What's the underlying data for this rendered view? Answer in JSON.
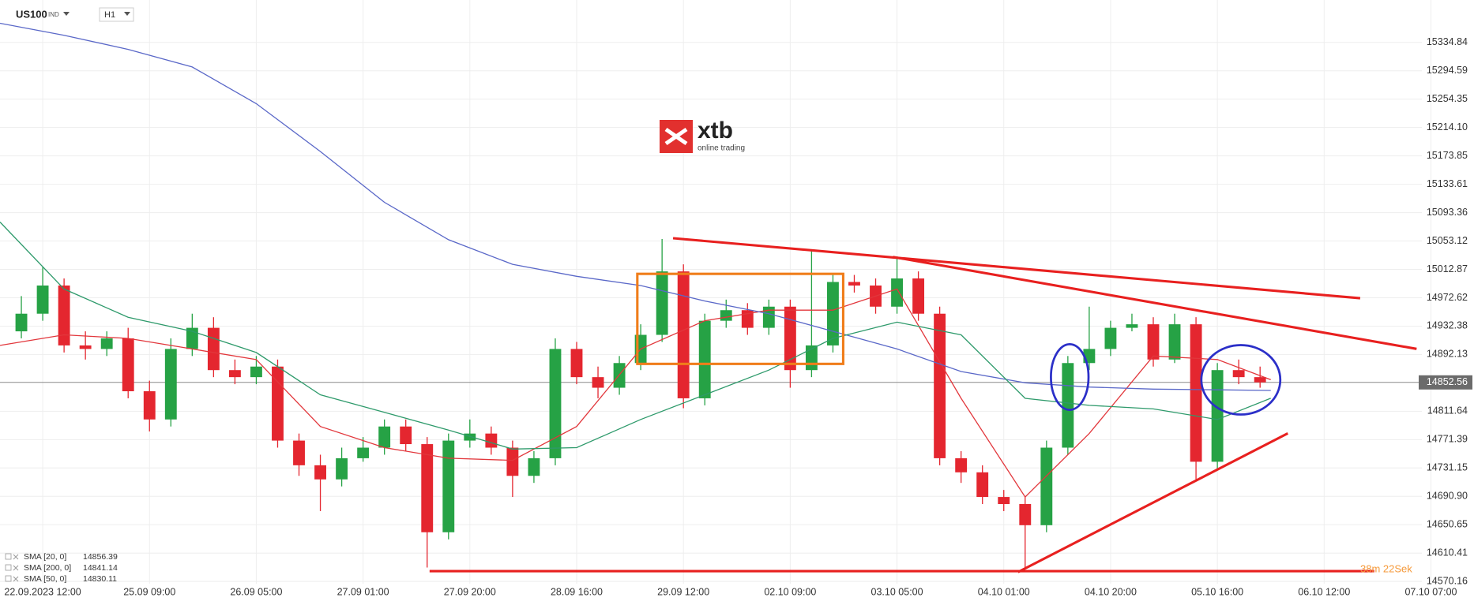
{
  "symbol": "US100",
  "market": "IND",
  "timeframe": "H1",
  "logo": {
    "mark": "xtb",
    "tagline": "online trading"
  },
  "countdown": "38m 22Sek",
  "chart_data": {
    "type": "candlestick",
    "x": [
      -4,
      0,
      4,
      8,
      12,
      16,
      20,
      24,
      28,
      32,
      36,
      40,
      44,
      48,
      52,
      56,
      60,
      64,
      68,
      72,
      76,
      80,
      84,
      88,
      92,
      96,
      100,
      104,
      108,
      112,
      116,
      120,
      124,
      128,
      132,
      136,
      140,
      144,
      148,
      152,
      156,
      160,
      164,
      168,
      172,
      176,
      180,
      184,
      188,
      192,
      196,
      200,
      204,
      208,
      212,
      216,
      220,
      224,
      228
    ],
    "open": [
      14925,
      14950,
      14990,
      14905,
      14900,
      14915,
      14840,
      14800,
      14900,
      14930,
      14870,
      14860,
      14875,
      14770,
      14735,
      14715,
      14745,
      14760,
      14790,
      14765,
      14640,
      14770,
      14780,
      14760,
      14720,
      14745,
      14900,
      14860,
      14845,
      14880,
      14920,
      15010,
      14830,
      14940,
      14955,
      14930,
      14960,
      14870,
      14905,
      14995,
      14990,
      14960,
      15000,
      14950,
      14745,
      14725,
      14690,
      14680,
      14650,
      14760,
      14880,
      14900,
      14930,
      14935,
      14885,
      14935,
      14740,
      14870,
      14860
    ],
    "high": [
      14975,
      15016,
      15000,
      14925,
      14925,
      14930,
      14855,
      14915,
      14950,
      14945,
      14885,
      14890,
      14885,
      14780,
      14750,
      14760,
      14775,
      14800,
      14800,
      14775,
      14780,
      14800,
      14790,
      14770,
      14755,
      14915,
      14910,
      14875,
      14890,
      14935,
      15056,
      15020,
      14950,
      14970,
      14965,
      14970,
      14970,
      15040,
      15005,
      15005,
      15000,
      15028,
      15010,
      14960,
      14755,
      14735,
      14700,
      14690,
      14770,
      14890,
      14960,
      14940,
      14950,
      14945,
      14950,
      14945,
      14880,
      14885,
      14875
    ],
    "low": [
      14915,
      14940,
      14895,
      14885,
      14890,
      14830,
      14783,
      14790,
      14890,
      14860,
      14850,
      14850,
      14760,
      14720,
      14670,
      14705,
      14740,
      14750,
      14755,
      14590,
      14630,
      14760,
      14750,
      14690,
      14710,
      14735,
      14850,
      14830,
      14835,
      14870,
      14910,
      14816,
      14820,
      14930,
      14920,
      14920,
      14845,
      14860,
      14895,
      14980,
      14950,
      14950,
      14940,
      14735,
      14710,
      14680,
      14670,
      14588,
      14640,
      14750,
      14870,
      14890,
      14925,
      14875,
      14880,
      14715,
      14730,
      14850,
      14845
    ],
    "close": [
      14950,
      14990,
      14905,
      14900,
      14915,
      14840,
      14800,
      14900,
      14930,
      14870,
      14860,
      14875,
      14770,
      14735,
      14715,
      14745,
      14760,
      14790,
      14765,
      14640,
      14770,
      14780,
      14760,
      14720,
      14745,
      14900,
      14860,
      14845,
      14880,
      14920,
      15010,
      14830,
      14940,
      14955,
      14930,
      14960,
      14870,
      14905,
      14995,
      14990,
      14960,
      15000,
      14950,
      14745,
      14725,
      14690,
      14680,
      14650,
      14760,
      14880,
      14900,
      14930,
      14935,
      14885,
      14935,
      14740,
      14870,
      14860,
      14852.56
    ],
    "up_color": "#26a245",
    "down_color": "#e4262f",
    "overlays": [
      {
        "name": "SMA [20, 0]",
        "color": "#e2373c",
        "x": [
          -8,
          4,
          16,
          28,
          40,
          52,
          64,
          76,
          88,
          100,
          112,
          124,
          136,
          148,
          160,
          172,
          184,
          196,
          208,
          220,
          230
        ],
        "values": [
          14905,
          14920,
          14915,
          14900,
          14885,
          14790,
          14760,
          14745,
          14742,
          14790,
          14900,
          14940,
          14955,
          14955,
          14985,
          14830,
          14690,
          14780,
          14890,
          14885,
          14856.39
        ]
      },
      {
        "name": "SMA [200, 0]",
        "color": "#5a68c8",
        "x": [
          -8,
          4,
          16,
          28,
          40,
          52,
          64,
          76,
          88,
          100,
          112,
          124,
          136,
          148,
          160,
          172,
          184,
          196,
          208,
          220,
          230
        ],
        "values": [
          15362,
          15345,
          15325,
          15300,
          15248,
          15180,
          15108,
          15055,
          15020,
          15003,
          14990,
          14968,
          14950,
          14925,
          14900,
          14868,
          14852,
          14846,
          14843,
          14842,
          14841.14
        ]
      },
      {
        "name": "SMA [50, 0]",
        "color": "#2e9a6b",
        "x": [
          -8,
          4,
          16,
          28,
          40,
          52,
          64,
          76,
          88,
          100,
          112,
          124,
          136,
          148,
          160,
          172,
          184,
          196,
          208,
          220,
          230
        ],
        "values": [
          15080,
          14985,
          14945,
          14925,
          14895,
          14835,
          14810,
          14785,
          14758,
          14760,
          14800,
          14835,
          14870,
          14915,
          14938,
          14920,
          14830,
          14820,
          14815,
          14800,
          14830.11
        ]
      }
    ],
    "last_price": 14852.56,
    "xlim": [
      -8,
      262
    ],
    "ylim": [
      14567,
      15395
    ],
    "xticks": [
      {
        "value": 0,
        "label": "22.09.2023 12:00"
      },
      {
        "value": 20,
        "label": "25.09 09:00"
      },
      {
        "value": 40,
        "label": "26.09 05:00"
      },
      {
        "value": 60,
        "label": "27.09 01:00"
      },
      {
        "value": 80,
        "label": "27.09 20:00"
      },
      {
        "value": 100,
        "label": "28.09 16:00"
      },
      {
        "value": 120,
        "label": "29.09 12:00"
      },
      {
        "value": 140,
        "label": "02.10 09:00"
      },
      {
        "value": 160,
        "label": "03.10 05:00"
      },
      {
        "value": 180,
        "label": "04.10 01:00"
      },
      {
        "value": 200,
        "label": "04.10 20:00"
      },
      {
        "value": 220,
        "label": "05.10 16:00"
      },
      {
        "value": 240,
        "label": "06.10 12:00"
      },
      {
        "value": 260,
        "label": "07.10 07:00"
      }
    ],
    "yticks": [
      15334.84,
      15294.59,
      15254.35,
      {
        "value": 15214.1,
        "label": "15214.10"
      },
      15173.85,
      15133.61,
      15093.36,
      15053.12,
      15012.87,
      14972.62,
      14932.38,
      14892.13,
      14811.64,
      14771.39,
      14731.15,
      {
        "value": 14690.9,
        "label": "14690.90"
      },
      14650.65,
      14610.41,
      14570.16
    ],
    "grid": true
  }
}
